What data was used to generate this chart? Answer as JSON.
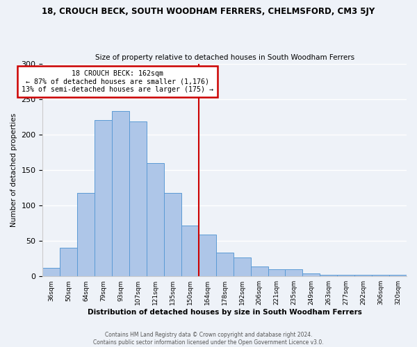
{
  "title": "18, CROUCH BECK, SOUTH WOODHAM FERRERS, CHELMSFORD, CM3 5JY",
  "subtitle": "Size of property relative to detached houses in South Woodham Ferrers",
  "xlabel": "Distribution of detached houses by size in South Woodham Ferrers",
  "ylabel": "Number of detached properties",
  "bar_labels": [
    "36sqm",
    "50sqm",
    "64sqm",
    "79sqm",
    "93sqm",
    "107sqm",
    "121sqm",
    "135sqm",
    "150sqm",
    "164sqm",
    "178sqm",
    "192sqm",
    "206sqm",
    "221sqm",
    "235sqm",
    "249sqm",
    "263sqm",
    "277sqm",
    "292sqm",
    "306sqm",
    "320sqm"
  ],
  "bar_heights": [
    12,
    40,
    118,
    220,
    233,
    218,
    160,
    118,
    72,
    59,
    33,
    27,
    14,
    10,
    10,
    4,
    2,
    2,
    2,
    2,
    2
  ],
  "bar_color": "#aec6e8",
  "bar_edge_color": "#5b9bd5",
  "annotation_line1": "18 CROUCH BECK: 162sqm",
  "annotation_line2": "← 87% of detached houses are smaller (1,176)",
  "annotation_line3": "13% of semi-detached houses are larger (175) →",
  "annotation_box_color": "#ffffff",
  "annotation_box_edge": "#cc0000",
  "vertical_line_color": "#cc0000",
  "ylim": [
    0,
    300
  ],
  "yticks": [
    0,
    50,
    100,
    150,
    200,
    250,
    300
  ],
  "footer1": "Contains HM Land Registry data © Crown copyright and database right 2024.",
  "footer2": "Contains public sector information licensed under the Open Government Licence v3.0.",
  "bg_color": "#eef2f8",
  "plot_bg_color": "#eef2f8"
}
